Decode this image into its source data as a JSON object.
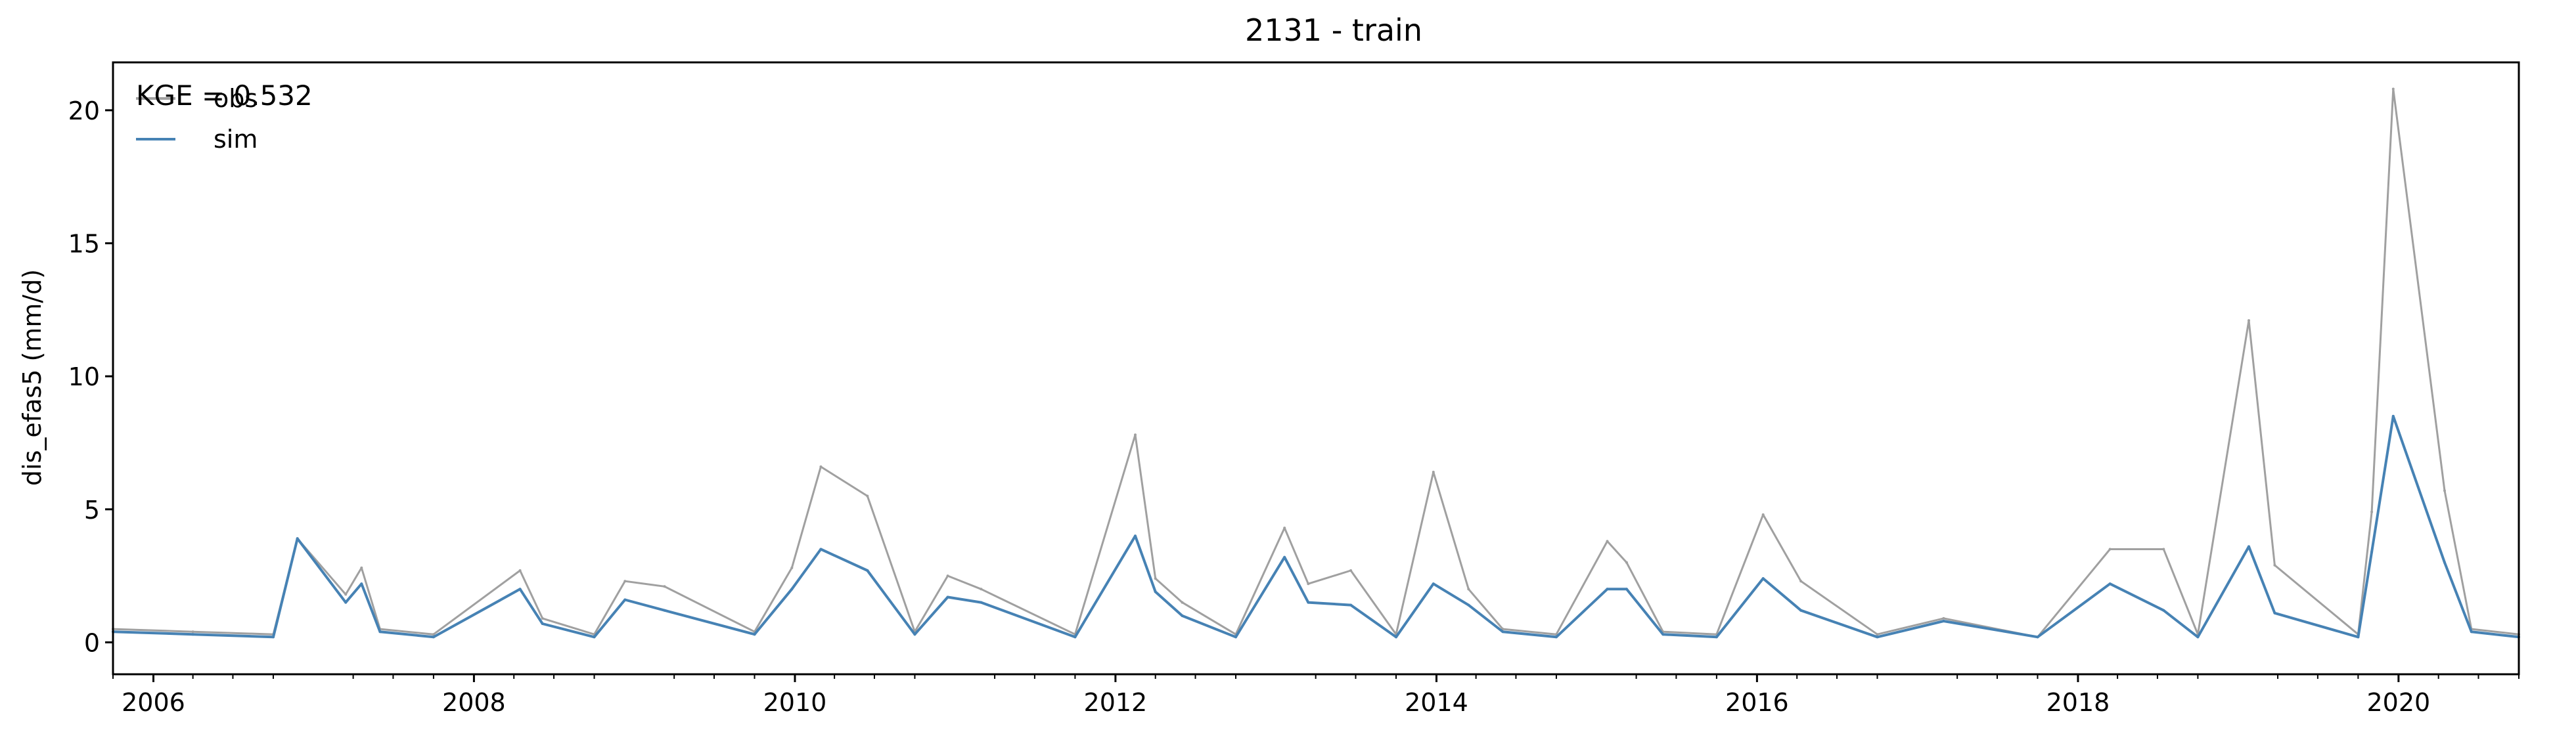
{
  "chart_data": {
    "type": "line",
    "title": "2131 - train",
    "xlabel": "",
    "ylabel": "dis_efas5 (mm/d)",
    "annotation": "KGE = 0.532",
    "xlim": [
      "2005-10-01",
      "2020-10-01"
    ],
    "ylim": [
      -1.2,
      21.8
    ],
    "x_ticks": [
      "2006",
      "2008",
      "2010",
      "2012",
      "2014",
      "2016",
      "2018",
      "2020"
    ],
    "y_ticks": [
      0,
      5,
      10,
      15,
      20
    ],
    "grid": false,
    "legend": {
      "position": "top-left",
      "entries": [
        "obs",
        "sim"
      ]
    },
    "series": [
      {
        "name": "obs",
        "color": "#a0a0a0",
        "x": [
          "2005-10-01",
          "2006-04-01",
          "2006-10-01",
          "2006-11-25",
          "2007-03-15",
          "2007-04-20",
          "2007-06-01",
          "2007-10-01",
          "2008-04-15",
          "2008-06-05",
          "2008-10-01",
          "2008-12-10",
          "2009-03-10",
          "2009-10-01",
          "2009-12-25",
          "2010-03-01",
          "2010-06-15",
          "2010-10-01",
          "2010-12-15",
          "2011-03-01",
          "2011-10-01",
          "2012-02-15",
          "2012-04-01",
          "2012-06-01",
          "2012-10-01",
          "2013-01-20",
          "2013-03-15",
          "2013-06-20",
          "2013-10-01",
          "2013-12-25",
          "2014-03-15",
          "2014-06-01",
          "2014-10-01",
          "2015-01-25",
          "2015-03-10",
          "2015-06-01",
          "2015-10-01",
          "2016-01-15",
          "2016-04-10",
          "2016-10-01",
          "2017-03-01",
          "2017-10-01",
          "2018-03-15",
          "2018-07-15",
          "2018-10-01",
          "2019-01-25",
          "2019-03-25",
          "2019-10-01",
          "2019-11-01",
          "2019-12-20",
          "2020-04-15",
          "2020-06-15",
          "2020-10-01"
        ],
        "y": [
          0.5,
          0.4,
          0.3,
          3.9,
          1.8,
          2.8,
          0.5,
          0.3,
          2.7,
          0.9,
          0.3,
          2.3,
          2.1,
          0.4,
          2.8,
          6.6,
          5.5,
          0.4,
          2.5,
          2.0,
          0.3,
          7.8,
          2.4,
          1.5,
          0.3,
          4.3,
          2.2,
          2.7,
          0.3,
          6.4,
          2.0,
          0.5,
          0.3,
          3.8,
          3.0,
          0.4,
          0.3,
          4.8,
          2.3,
          0.3,
          0.9,
          0.2,
          3.5,
          3.5,
          0.3,
          12.1,
          2.9,
          0.3,
          4.9,
          20.8,
          5.7,
          0.5,
          0.3
        ]
      },
      {
        "name": "sim",
        "color": "#4682b4",
        "x": [
          "2005-10-01",
          "2006-04-01",
          "2006-10-01",
          "2006-11-25",
          "2007-03-15",
          "2007-04-20",
          "2007-06-01",
          "2007-10-01",
          "2008-04-15",
          "2008-06-05",
          "2008-10-01",
          "2008-12-10",
          "2009-03-10",
          "2009-10-01",
          "2009-12-25",
          "2010-03-01",
          "2010-06-15",
          "2010-10-01",
          "2010-12-15",
          "2011-03-01",
          "2011-10-01",
          "2012-02-15",
          "2012-04-01",
          "2012-06-01",
          "2012-10-01",
          "2013-01-20",
          "2013-03-15",
          "2013-06-20",
          "2013-10-01",
          "2013-12-25",
          "2014-03-15",
          "2014-06-01",
          "2014-10-01",
          "2015-01-25",
          "2015-03-10",
          "2015-06-01",
          "2015-10-01",
          "2016-01-15",
          "2016-04-10",
          "2016-10-01",
          "2017-03-01",
          "2017-10-01",
          "2018-03-15",
          "2018-07-15",
          "2018-10-01",
          "2019-01-25",
          "2019-03-25",
          "2019-10-01",
          "2019-11-01",
          "2019-12-20",
          "2020-04-15",
          "2020-06-15",
          "2020-10-01"
        ],
        "y": [
          0.4,
          0.3,
          0.2,
          3.9,
          1.5,
          2.2,
          0.4,
          0.2,
          2.0,
          0.7,
          0.2,
          1.6,
          1.2,
          0.3,
          2.0,
          3.5,
          2.7,
          0.3,
          1.7,
          1.5,
          0.2,
          4.0,
          1.9,
          1.0,
          0.2,
          3.2,
          1.5,
          1.4,
          0.2,
          2.2,
          1.4,
          0.4,
          0.2,
          2.0,
          2.0,
          0.3,
          0.2,
          2.4,
          1.2,
          0.2,
          0.8,
          0.2,
          2.2,
          1.2,
          0.2,
          3.6,
          1.1,
          0.2,
          3.4,
          8.5,
          3.0,
          0.4,
          0.2
        ]
      }
    ]
  }
}
